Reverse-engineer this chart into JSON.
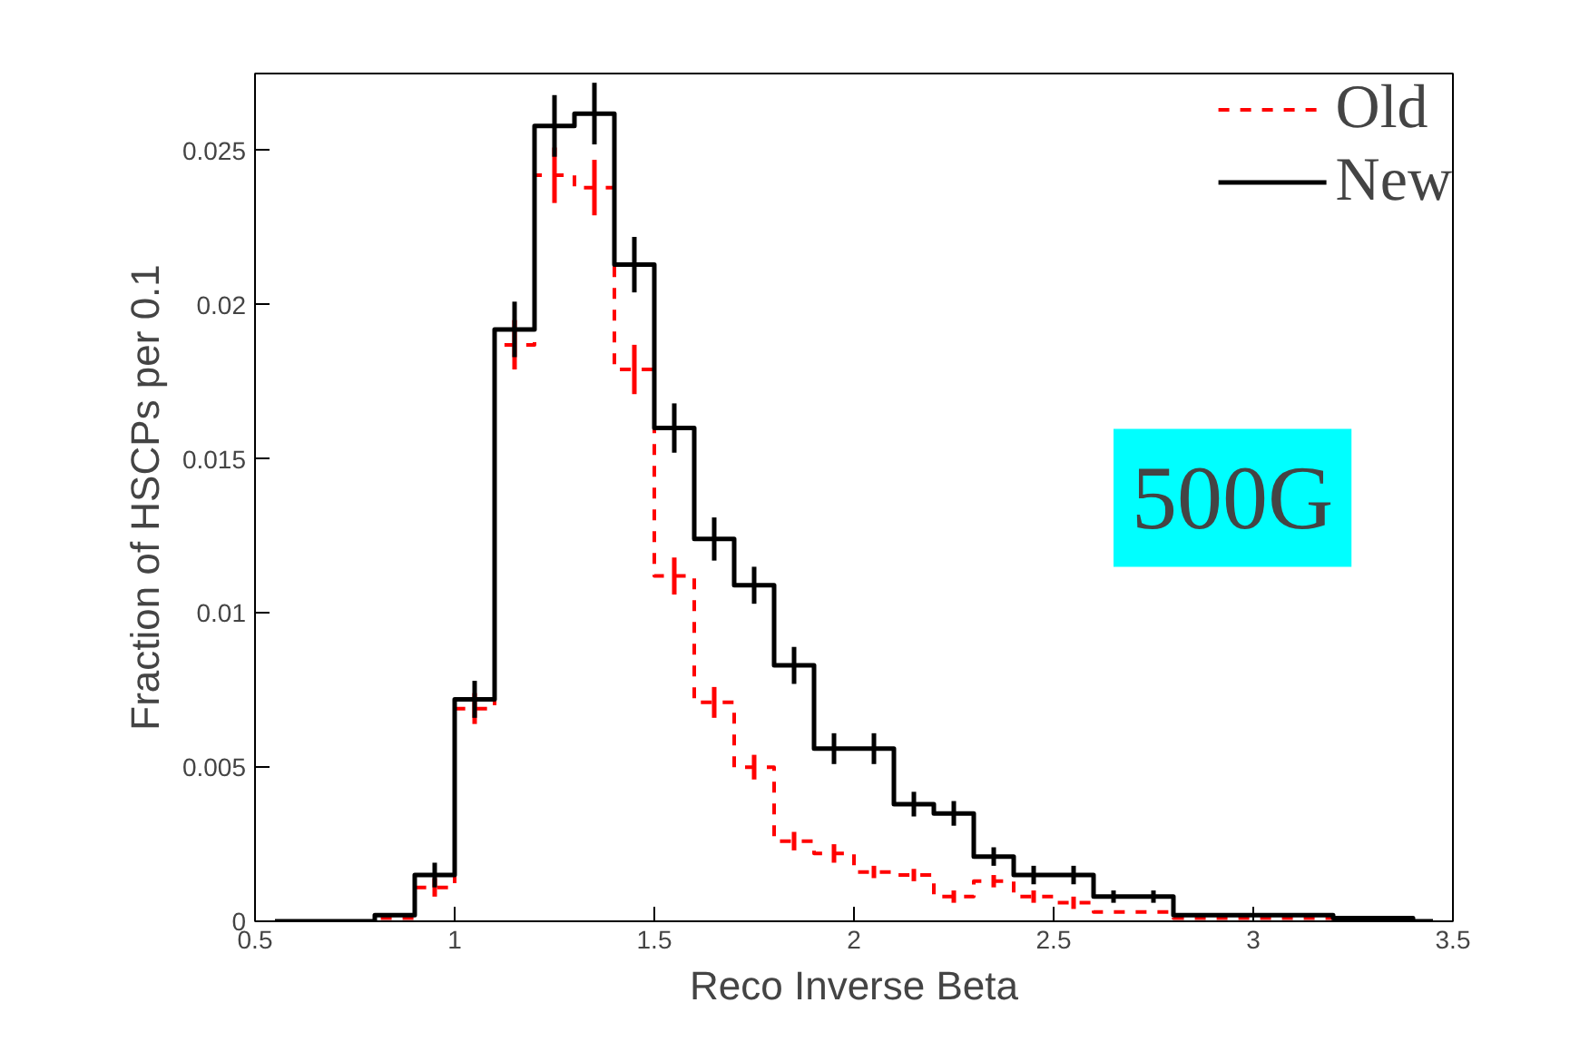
{
  "chart_data": {
    "type": "step",
    "xlabel": "Reco Inverse Beta",
    "ylabel": "Fraction of HSCPs per 0.1",
    "x": [
      0.55,
      0.65,
      0.75,
      0.85,
      0.95,
      1.05,
      1.15,
      1.25,
      1.35,
      1.45,
      1.55,
      1.65,
      1.75,
      1.85,
      1.95,
      2.05,
      2.15,
      2.25,
      2.35,
      2.45,
      2.55,
      2.65,
      2.75,
      2.85,
      2.95,
      3.05,
      3.15,
      3.25,
      3.35,
      3.45
    ],
    "series": [
      {
        "name": "Old",
        "color": "#ff0000",
        "line_style": "dashed",
        "values": [
          0,
          0,
          0,
          0.0001,
          0.0011,
          0.0069,
          0.0187,
          0.0242,
          0.0238,
          0.0179,
          0.0112,
          0.0071,
          0.005,
          0.0026,
          0.0022,
          0.0016,
          0.0015,
          0.0008,
          0.0013,
          0.0008,
          0.0006,
          0.0003,
          0.0003,
          0.0001,
          0.0001,
          0.0001,
          0.0001,
          null,
          null,
          0
        ],
        "errors": [
          null,
          null,
          null,
          null,
          0.0003,
          0.0005,
          0.0008,
          0.0009,
          0.0009,
          0.0008,
          0.0006,
          0.0005,
          0.0004,
          0.0003,
          0.0003,
          0.0002,
          0.0002,
          0.0002,
          0.0002,
          0.0002,
          0.0002,
          null,
          null,
          null,
          null,
          null,
          null,
          null,
          null,
          null
        ]
      },
      {
        "name": "New",
        "color": "#000000",
        "line_style": "solid",
        "values": [
          0,
          0,
          0,
          0.0002,
          0.0015,
          0.0072,
          0.0192,
          0.0258,
          0.0262,
          0.0213,
          0.016,
          0.0124,
          0.0109,
          0.0083,
          0.0056,
          0.0056,
          0.0038,
          0.0035,
          0.0021,
          0.0015,
          0.0015,
          0.0008,
          0.0008,
          0.0002,
          0.0002,
          0.0002,
          0.0002,
          0.0001,
          0.0001,
          0
        ],
        "errors": [
          null,
          null,
          null,
          null,
          0.0004,
          0.0006,
          0.0009,
          0.001,
          0.001,
          0.0009,
          0.0008,
          0.0007,
          0.0006,
          0.0006,
          0.0005,
          0.0005,
          0.0004,
          0.0004,
          0.0003,
          0.0003,
          0.0003,
          0.0002,
          0.0002,
          null,
          null,
          null,
          null,
          null,
          null,
          null
        ]
      }
    ],
    "xlim": [
      0.5,
      3.5
    ],
    "xticks": [
      0.5,
      1,
      1.5,
      2,
      2.5,
      3,
      3.5
    ],
    "ylim": [
      0,
      0.0275
    ],
    "yticks": [
      0,
      0.005,
      0.01,
      0.015,
      0.02,
      0.025
    ],
    "grid": false,
    "legend": "top right",
    "annotations": [
      "500G"
    ]
  }
}
